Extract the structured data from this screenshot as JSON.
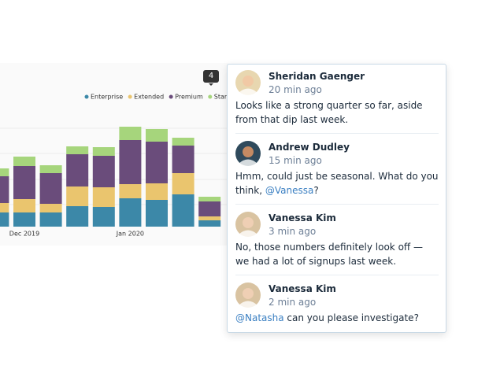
{
  "chart_data": {
    "type": "bar",
    "stacked": true,
    "categories": [
      null,
      "Dec 2019",
      null,
      null,
      null,
      "Jan 2020",
      null,
      null,
      null
    ],
    "series": [
      {
        "name": "Enterprise",
        "color": "#3c88a8",
        "values": [
          18,
          18,
          18,
          26,
          25,
          36,
          34,
          41,
          8
        ]
      },
      {
        "name": "Extended",
        "color": "#eac56e",
        "values": [
          12,
          17,
          11,
          25,
          25,
          18,
          21,
          27,
          5
        ]
      },
      {
        "name": "Premium",
        "color": "#6a4c7b",
        "values": [
          34,
          42,
          39,
          41,
          40,
          56,
          53,
          35,
          19
        ]
      },
      {
        "name": "Startup",
        "color": "#a6d57c",
        "values": [
          10,
          12,
          10,
          10,
          11,
          17,
          16,
          10,
          6
        ]
      }
    ]
  },
  "comment_count": "4",
  "comments": [
    {
      "author": "Sheridan Gaenger",
      "time": "20 min ago",
      "body": [
        {
          "text": "Looks like a strong quarter so far, aside from that dip last week."
        }
      ]
    },
    {
      "author": "Andrew Dudley",
      "time": "15 min ago",
      "body": [
        {
          "text": "Hmm, could just be seasonal. What do you think, "
        },
        {
          "mention": "@Vanessa"
        },
        {
          "text": "?"
        }
      ]
    },
    {
      "author": "Vanessa Kim",
      "time": "3 min ago",
      "body": [
        {
          "text": "No, those numbers definitely look off — we had a lot of signups last week."
        }
      ]
    },
    {
      "author": "Vanessa Kim",
      "time": "2 min ago",
      "body": [
        {
          "mention": "@Natasha"
        },
        {
          "text": " can you please investigate?"
        }
      ]
    }
  ]
}
